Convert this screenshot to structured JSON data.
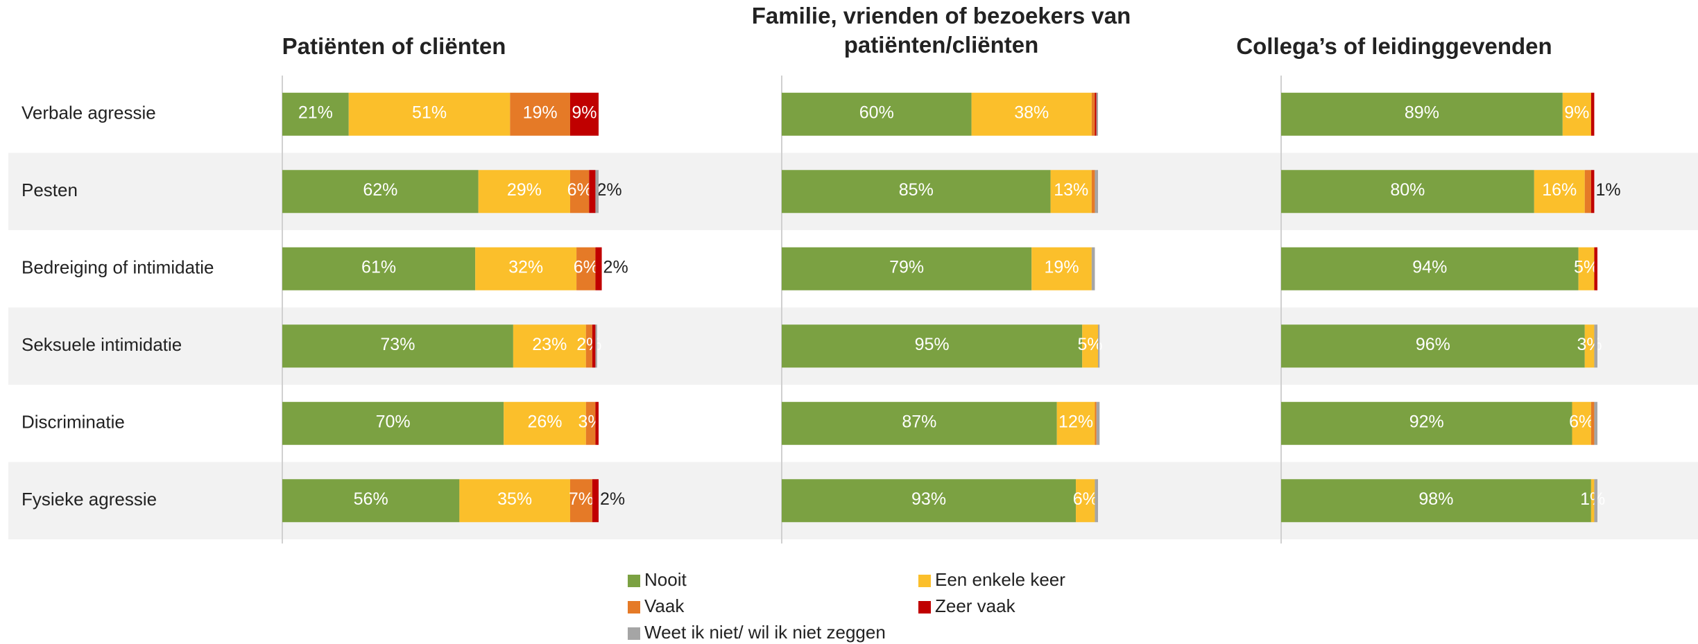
{
  "chart_data": [
    {
      "type": "bar",
      "orientation": "horizontal",
      "stacked": true,
      "title": "Patiënten of cliënten",
      "categories": [
        "Verbale agressie",
        "Pesten",
        "Bedreiging of intimidatie",
        "Seksuele intimidatie",
        "Discriminatie",
        "Fysieke agressie"
      ],
      "xlim": [
        0,
        100
      ],
      "series": [
        {
          "name": "Nooit",
          "color": "#7ba142",
          "values": [
            21,
            62,
            61,
            73,
            70,
            56
          ],
          "value_labels": [
            "21%",
            "62%",
            "61%",
            "73%",
            "70%",
            "56%"
          ]
        },
        {
          "name": "Een enkele keer",
          "color": "#fbbf2b",
          "values": [
            51,
            29,
            32,
            23,
            26,
            35
          ],
          "value_labels": [
            "51%",
            "29%",
            "32%",
            "23%",
            "26%",
            "35%"
          ]
        },
        {
          "name": "Vaak",
          "color": "#e57a27",
          "values": [
            19,
            6,
            6,
            2,
            3,
            7
          ],
          "value_labels": [
            "19%",
            "6%",
            "6%",
            "2%",
            "3%",
            "7%"
          ]
        },
        {
          "name": "Zeer vaak",
          "color": "#c00000",
          "values": [
            9,
            2,
            2,
            1,
            1,
            2
          ],
          "value_labels": [
            "9%",
            "2%",
            "2%",
            null,
            null,
            "2%"
          ]
        },
        {
          "name": "Weet ik niet/ wil ik niet zeggen",
          "color": "#a5a5a5",
          "values": [
            0,
            1,
            0,
            0.5,
            0,
            0
          ],
          "value_labels": [
            null,
            null,
            null,
            null,
            null,
            null
          ]
        }
      ]
    },
    {
      "type": "bar",
      "orientation": "horizontal",
      "stacked": true,
      "title": "Familie, vrienden of bezoekers van patiënten/cliënten",
      "xlim": [
        0,
        100
      ],
      "series": [
        {
          "values": [
            60,
            85,
            79,
            95,
            87,
            93
          ],
          "value_labels": [
            "60%",
            "85%",
            "79%",
            "95%",
            "87%",
            "93%"
          ]
        },
        {
          "values": [
            38,
            13,
            19,
            5,
            12,
            6
          ],
          "value_labels": [
            "38%",
            "13%",
            "19%",
            "5%",
            "12%",
            "6%"
          ]
        },
        {
          "values": [
            1,
            1,
            0,
            0,
            0.5,
            0
          ],
          "value_labels": [
            null,
            null,
            null,
            null,
            null,
            null
          ]
        },
        {
          "values": [
            0.5,
            0,
            0,
            0,
            0,
            0
          ],
          "value_labels": [
            null,
            null,
            null,
            null,
            null,
            null
          ]
        },
        {
          "values": [
            0.5,
            1,
            1,
            0.5,
            1,
            1
          ],
          "value_labels": [
            null,
            null,
            null,
            null,
            null,
            null
          ]
        }
      ]
    },
    {
      "type": "bar",
      "orientation": "horizontal",
      "stacked": true,
      "title": "Collega’s of leidinggevenden",
      "xlim": [
        0,
        100
      ],
      "series": [
        {
          "values": [
            89,
            80,
            94,
            96,
            92,
            98
          ],
          "value_labels": [
            "89%",
            "80%",
            "94%",
            "96%",
            "92%",
            "98%"
          ]
        },
        {
          "values": [
            9,
            16,
            5,
            3,
            6,
            1
          ],
          "value_labels": [
            "9%",
            "16%",
            "5%",
            "3%",
            "6%",
            "1%"
          ]
        },
        {
          "values": [
            0,
            2,
            0,
            0,
            1,
            0
          ],
          "value_labels": [
            null,
            null,
            null,
            null,
            null,
            null
          ]
        },
        {
          "values": [
            1,
            1,
            1,
            0,
            0,
            0
          ],
          "value_labels": [
            null,
            "1%",
            null,
            null,
            null,
            null
          ]
        },
        {
          "values": [
            0,
            0,
            0,
            1,
            1,
            1
          ],
          "value_labels": [
            null,
            null,
            null,
            null,
            null,
            null
          ]
        }
      ]
    }
  ]
}
